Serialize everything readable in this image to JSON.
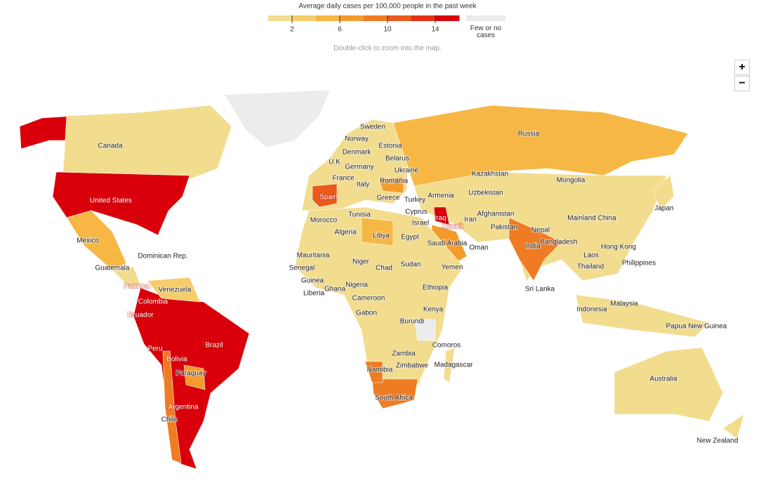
{
  "legend": {
    "title": "Average daily cases per 100,000 people in the past week",
    "lim": [
      0,
      16
    ],
    "ticks": [
      2,
      6,
      10,
      14
    ],
    "colors": [
      "#f2dc8e",
      "#f6cd6a",
      "#f6b745",
      "#f39b2d",
      "#ef7b22",
      "#ea5a1c",
      "#e33217",
      "#d9000b"
    ],
    "no_data_color": "#ececec",
    "no_data_label": "Few or no cases"
  },
  "hint": "Double-click to zoom into the map.",
  "zoom": {
    "in": "+",
    "out": "−"
  },
  "countries": [
    "Canada",
    "United States",
    "Mexico",
    "Guatemala",
    "Dominican Rep.",
    "Panama",
    "Venezuela",
    "Colombia",
    "Ecuador",
    "Peru",
    "Brazil",
    "Bolivia",
    "Paraguay",
    "Argentina",
    "Chile",
    "Sweden",
    "Norway",
    "Denmark",
    "Estonia",
    "Belarus",
    "U.K.",
    "Germany",
    "Ukraine",
    "France",
    "Italy",
    "Romania",
    "Spain",
    "Greece",
    "Turkey",
    "Cyprus",
    "Israel",
    "Tunisia",
    "Morocco",
    "Algeria",
    "Libya",
    "Egypt",
    "Mauritania",
    "Senegal",
    "Niger",
    "Chad",
    "Sudan",
    "Guinea",
    "Ghana",
    "Nigeria",
    "Liberia",
    "Cameroon",
    "Ethiopia",
    "Gabon",
    "Kenya",
    "Burundi",
    "Zambia",
    "Zimbabwe",
    "Namibia",
    "South Africa",
    "Comoros",
    "Madagascar",
    "Armenia",
    "Iraq",
    "Kuwait",
    "Saudi Arabia",
    "Yemen",
    "Oman",
    "Iran",
    "Afghanistan",
    "Pakistan",
    "Uzbekistan",
    "Kazakhstan",
    "Russia",
    "Mongolia",
    "Mainland China",
    "Nepal",
    "India",
    "Bangladesh",
    "Sri Lanka",
    "Hong Kong",
    "Laos",
    "Thailand",
    "Philippines",
    "Malaysia",
    "Indonesia",
    "Papua New Guinea",
    "Japan",
    "Australia",
    "New Zealand"
  ]
}
